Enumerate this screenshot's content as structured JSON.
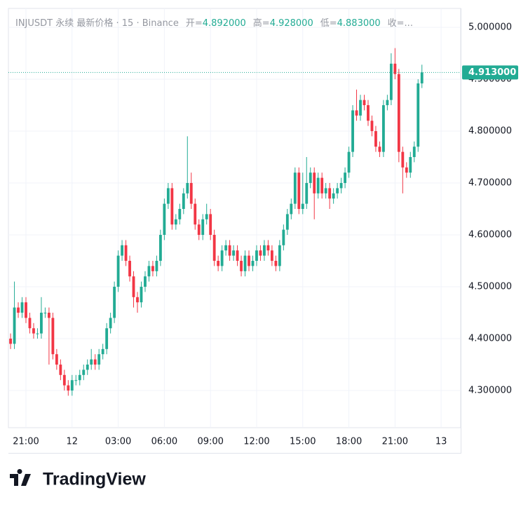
{
  "chart_data": {
    "type": "candlestick",
    "header": {
      "symbol": "INJUSDT 永续 最新价格 · 15 · Binance",
      "ohlc": [
        {
          "label": "开=",
          "value": "4.892000"
        },
        {
          "label": "高=",
          "value": "4.928000"
        },
        {
          "label": "低=",
          "value": "4.883000"
        },
        {
          "label": "收=...",
          "value": ""
        }
      ]
    },
    "logo": "TradingView",
    "up_color": "#22ab94",
    "down_color": "#f23645",
    "last_price": {
      "value": 4.913,
      "label": "4.913000"
    },
    "xlim": [
      19.86,
      49.27
    ],
    "xticks": [
      {
        "value": 21,
        "label": "21:00"
      },
      {
        "value": 24,
        "label": "12"
      },
      {
        "value": 27,
        "label": "03:00"
      },
      {
        "value": 30,
        "label": "06:00"
      },
      {
        "value": 33,
        "label": "09:00"
      },
      {
        "value": 36,
        "label": "12:00"
      },
      {
        "value": 39,
        "label": "15:00"
      },
      {
        "value": 42,
        "label": "18:00"
      },
      {
        "value": 45,
        "label": "21:00"
      },
      {
        "value": 48,
        "label": "13"
      }
    ],
    "ylim": [
      4.2284,
      5.0365
    ],
    "yticks": [
      {
        "value": 4.3,
        "label": "4.300000"
      },
      {
        "value": 4.4,
        "label": "4.400000"
      },
      {
        "value": 4.5,
        "label": "4.500000"
      },
      {
        "value": 4.6,
        "label": "4.600000"
      },
      {
        "value": 4.7,
        "label": "4.700000"
      },
      {
        "value": 4.8,
        "label": "4.800000"
      },
      {
        "value": 4.9,
        "label": "4.900000"
      },
      {
        "value": 5.0,
        "label": "5.000000"
      }
    ],
    "grid": true,
    "x": [
      20,
      20.25,
      20.5,
      20.75,
      21,
      21.25,
      21.5,
      21.75,
      22,
      22.25,
      22.5,
      22.75,
      23,
      23.25,
      23.5,
      23.75,
      24,
      24.25,
      24.5,
      24.75,
      25,
      25.25,
      25.5,
      25.75,
      26,
      26.25,
      26.5,
      26.75,
      27,
      27.25,
      27.5,
      27.75,
      28,
      28.25,
      28.5,
      28.75,
      29,
      29.25,
      29.5,
      29.75,
      30,
      30.25,
      30.5,
      30.75,
      31,
      31.25,
      31.5,
      31.75,
      32,
      32.25,
      32.5,
      32.75,
      33,
      33.25,
      33.5,
      33.75,
      34,
      34.25,
      34.5,
      34.75,
      35,
      35.25,
      35.5,
      35.75,
      36,
      36.25,
      36.5,
      36.75,
      37,
      37.25,
      37.5,
      37.75,
      38,
      38.25,
      38.5,
      38.75,
      39,
      39.25,
      39.5,
      39.75,
      40,
      40.25,
      40.5,
      40.75,
      41,
      41.25,
      41.5,
      41.75,
      42,
      42.25,
      42.5,
      42.75,
      43,
      43.25,
      43.5,
      43.75,
      44,
      44.25,
      44.5,
      44.75,
      45,
      45.25,
      45.5,
      45.75,
      46,
      46.25,
      46.5,
      46.75
    ],
    "open": [
      4.4,
      4.39,
      4.46,
      4.45,
      4.47,
      4.44,
      4.42,
      4.41,
      4.41,
      4.45,
      4.45,
      4.44,
      4.37,
      4.35,
      4.33,
      4.31,
      4.3,
      4.32,
      4.32,
      4.33,
      4.34,
      4.35,
      4.36,
      4.35,
      4.37,
      4.38,
      4.42,
      4.44,
      4.5,
      4.56,
      4.58,
      4.55,
      4.52,
      4.48,
      4.47,
      4.5,
      4.52,
      4.54,
      4.53,
      4.55,
      4.6,
      4.66,
      4.69,
      4.62,
      4.63,
      4.65,
      4.68,
      4.7,
      4.66,
      4.62,
      4.6,
      4.63,
      4.64,
      4.6,
      4.55,
      4.54,
      4.57,
      4.58,
      4.56,
      4.57,
      4.55,
      4.53,
      4.56,
      4.54,
      4.55,
      4.57,
      4.56,
      4.58,
      4.57,
      4.55,
      4.54,
      4.58,
      4.61,
      4.64,
      4.66,
      4.72,
      4.65,
      4.66,
      4.7,
      4.72,
      4.68,
      4.71,
      4.68,
      4.69,
      4.67,
      4.68,
      4.69,
      4.7,
      4.72,
      4.76,
      4.84,
      4.83,
      4.86,
      4.85,
      4.82,
      4.8,
      4.77,
      4.76,
      4.85,
      4.86,
      4.93,
      4.91,
      4.76,
      4.73,
      4.72,
      4.75,
      4.77,
      4.892
    ],
    "high": [
      4.41,
      4.51,
      4.47,
      4.48,
      4.48,
      4.45,
      4.43,
      4.42,
      4.48,
      4.46,
      4.46,
      4.45,
      4.38,
      4.36,
      4.34,
      4.32,
      4.33,
      4.33,
      4.34,
      4.35,
      4.36,
      4.38,
      4.37,
      4.38,
      4.39,
      4.43,
      4.45,
      4.51,
      4.57,
      4.59,
      4.59,
      4.56,
      4.53,
      4.49,
      4.51,
      4.53,
      4.55,
      4.55,
      4.56,
      4.61,
      4.67,
      4.7,
      4.7,
      4.64,
      4.66,
      4.69,
      4.79,
      4.72,
      4.67,
      4.63,
      4.64,
      4.66,
      4.65,
      4.61,
      4.56,
      4.58,
      4.59,
      4.59,
      4.58,
      4.58,
      4.56,
      4.57,
      4.57,
      4.56,
      4.58,
      4.58,
      4.59,
      4.59,
      4.58,
      4.56,
      4.59,
      4.62,
      4.65,
      4.67,
      4.73,
      4.73,
      4.72,
      4.75,
      4.73,
      4.73,
      4.72,
      4.72,
      4.7,
      4.7,
      4.69,
      4.7,
      4.71,
      4.73,
      4.77,
      4.85,
      4.88,
      4.87,
      4.87,
      4.86,
      4.83,
      4.81,
      4.78,
      4.86,
      4.87,
      4.95,
      4.96,
      4.92,
      4.77,
      4.74,
      4.76,
      4.78,
      4.9,
      4.928
    ],
    "low": [
      4.38,
      4.38,
      4.44,
      4.44,
      4.43,
      4.41,
      4.4,
      4.4,
      4.4,
      4.44,
      4.35,
      4.36,
      4.34,
      4.32,
      4.3,
      4.29,
      4.29,
      4.31,
      4.31,
      4.32,
      4.33,
      4.34,
      4.34,
      4.34,
      4.36,
      4.37,
      4.41,
      4.43,
      4.49,
      4.55,
      4.54,
      4.51,
      4.46,
      4.45,
      4.46,
      4.49,
      4.51,
      4.52,
      4.52,
      4.54,
      4.59,
      4.65,
      4.61,
      4.61,
      4.62,
      4.64,
      4.67,
      4.65,
      4.61,
      4.59,
      4.59,
      4.62,
      4.59,
      4.54,
      4.53,
      4.53,
      4.56,
      4.55,
      4.55,
      4.54,
      4.52,
      4.52,
      4.53,
      4.53,
      4.54,
      4.55,
      4.55,
      4.56,
      4.54,
      4.53,
      4.53,
      4.57,
      4.6,
      4.63,
      4.65,
      4.64,
      4.64,
      4.65,
      4.69,
      4.63,
      4.67,
      4.67,
      4.67,
      4.65,
      4.66,
      4.67,
      4.68,
      4.69,
      4.71,
      4.75,
      4.82,
      4.82,
      4.84,
      4.81,
      4.79,
      4.76,
      4.75,
      4.75,
      4.84,
      4.85,
      4.9,
      4.74,
      4.68,
      4.71,
      4.71,
      4.74,
      4.76,
      4.883
    ],
    "close": [
      4.39,
      4.46,
      4.45,
      4.47,
      4.44,
      4.42,
      4.41,
      4.41,
      4.45,
      4.45,
      4.44,
      4.37,
      4.35,
      4.33,
      4.31,
      4.3,
      4.32,
      4.32,
      4.33,
      4.34,
      4.35,
      4.36,
      4.35,
      4.37,
      4.38,
      4.42,
      4.44,
      4.5,
      4.56,
      4.58,
      4.55,
      4.52,
      4.48,
      4.47,
      4.5,
      4.52,
      4.54,
      4.53,
      4.55,
      4.6,
      4.66,
      4.69,
      4.62,
      4.63,
      4.65,
      4.68,
      4.7,
      4.66,
      4.62,
      4.6,
      4.63,
      4.64,
      4.6,
      4.55,
      4.54,
      4.57,
      4.58,
      4.56,
      4.57,
      4.55,
      4.53,
      4.56,
      4.54,
      4.55,
      4.57,
      4.56,
      4.58,
      4.57,
      4.55,
      4.54,
      4.58,
      4.61,
      4.64,
      4.66,
      4.72,
      4.65,
      4.66,
      4.7,
      4.72,
      4.68,
      4.71,
      4.68,
      4.69,
      4.67,
      4.68,
      4.69,
      4.7,
      4.72,
      4.76,
      4.84,
      4.83,
      4.86,
      4.85,
      4.82,
      4.8,
      4.77,
      4.76,
      4.85,
      4.86,
      4.93,
      4.91,
      4.76,
      4.73,
      4.72,
      4.75,
      4.77,
      4.892,
      4.913
    ]
  }
}
